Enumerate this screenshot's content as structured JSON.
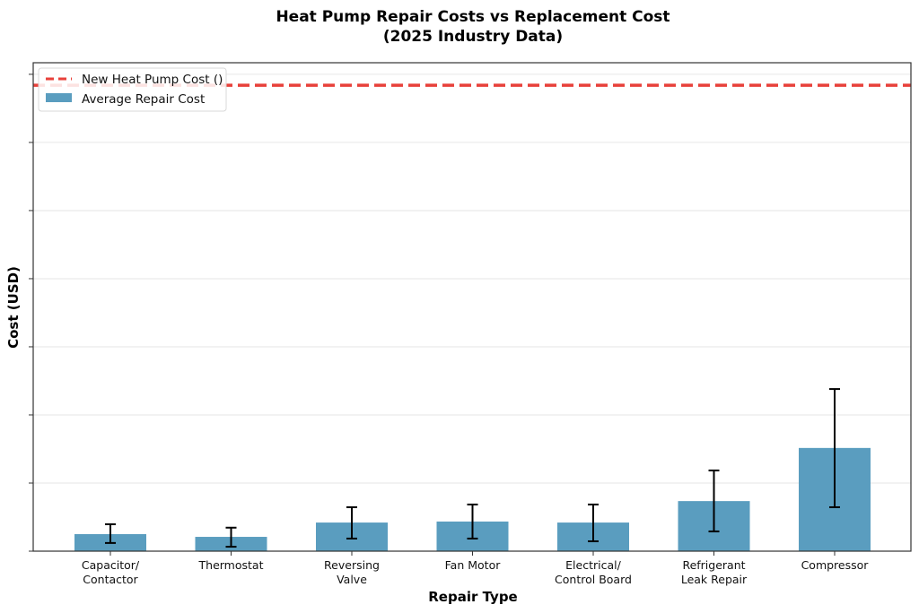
{
  "chart_data": {
    "type": "bar",
    "title": "Heat Pump Repair Costs vs Replacement Cost",
    "subtitle": "(2025 Industry Data)",
    "xlabel": "Repair Type",
    "ylabel": "Cost (USD)",
    "ylim": [
      0,
      14340
    ],
    "ytick_step": 2000,
    "ytick_labels_shown": false,
    "grid": "y",
    "legend_position": "top-left",
    "categories": [
      [
        "Capacitor/",
        "Contactor"
      ],
      [
        "Thermostat"
      ],
      [
        "Reversing",
        "Valve"
      ],
      [
        "Fan Motor"
      ],
      [
        "Electrical/",
        "Control Board"
      ],
      [
        "Refrigerant",
        "Leak Repair"
      ],
      [
        "Compressor"
      ]
    ],
    "series": [
      {
        "name": "Average Repair Cost",
        "color": "#5a9dbf",
        "values": [
          500,
          420,
          840,
          870,
          840,
          1470,
          3030
        ],
        "error_low": [
          240,
          130,
          370,
          370,
          290,
          580,
          1290
        ],
        "error_high": [
          790,
          690,
          1290,
          1370,
          1370,
          2370,
          4760
        ]
      }
    ],
    "reference_line": {
      "name": "New Heat Pump Cost ()",
      "value": 13680,
      "color": "#e8403a",
      "style": "dashed"
    }
  }
}
